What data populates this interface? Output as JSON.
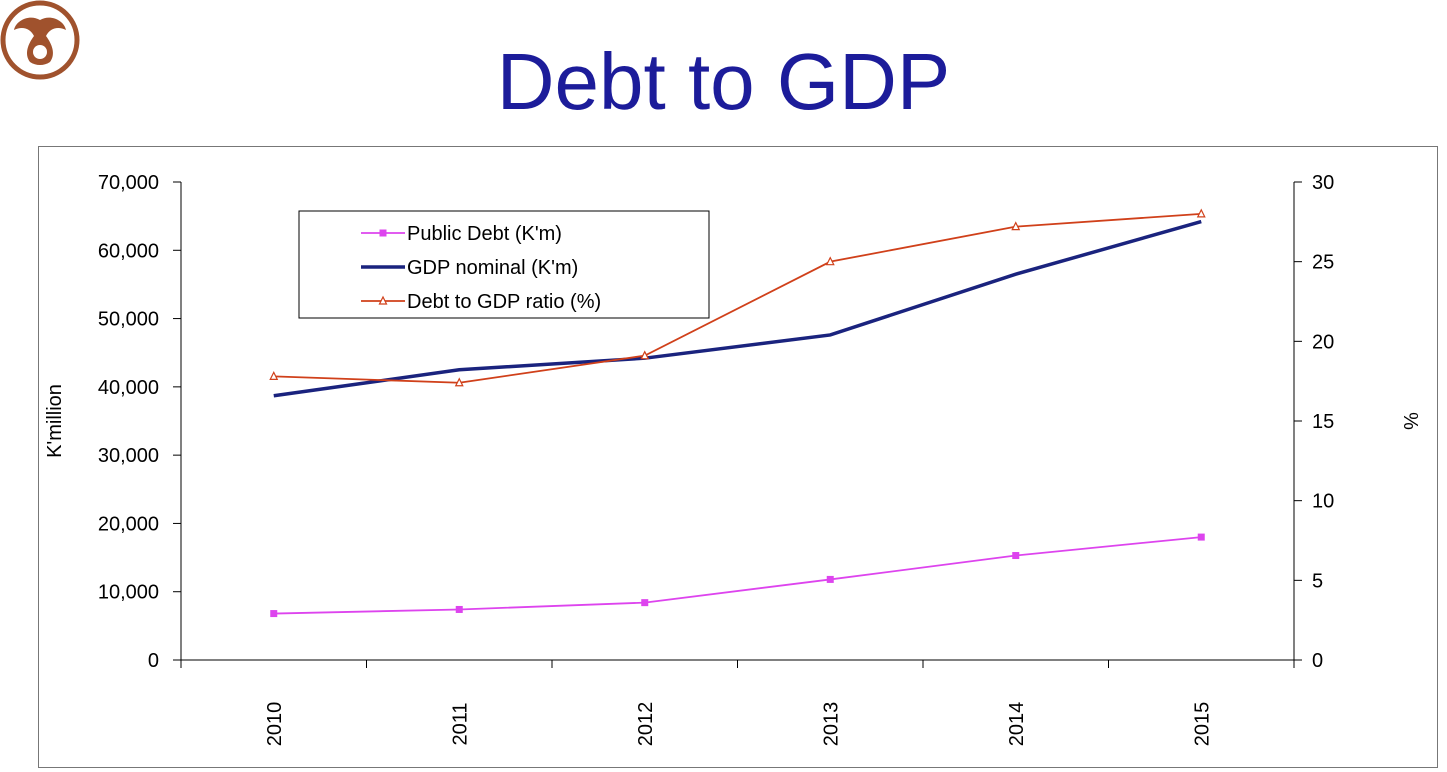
{
  "title": "Debt to GDP",
  "logo": {
    "icon": "phoenix-emblem-icon",
    "color": "#a0522d"
  },
  "chart_data": {
    "type": "line",
    "title": "Debt to GDP",
    "categories": [
      "2010",
      "2011",
      "2012",
      "2013",
      "2014",
      "2015"
    ],
    "y_left": {
      "label": "K'million",
      "range": [
        0,
        70000
      ],
      "ticks": [
        0,
        10000,
        20000,
        30000,
        40000,
        50000,
        60000,
        70000
      ],
      "tick_labels": [
        "0",
        "10,000",
        "20,000",
        "30,000",
        "40,000",
        "50,000",
        "60,000",
        "70,000"
      ]
    },
    "y_right": {
      "label": "%",
      "range": [
        0,
        30
      ],
      "ticks": [
        0,
        5,
        10,
        15,
        20,
        25,
        30
      ],
      "tick_labels": [
        "0",
        "5",
        "10",
        "15",
        "20",
        "25",
        "30"
      ]
    },
    "grid": false,
    "legend_position": "top-left",
    "series": [
      {
        "name": "Public Debt (K'm)",
        "axis": "left",
        "color": "#dd44ee",
        "marker": "square",
        "values": [
          6800,
          7400,
          8400,
          11800,
          15300,
          18000
        ]
      },
      {
        "name": "GDP nominal (K'm)",
        "axis": "left",
        "color": "#1a237e",
        "marker": "none",
        "values": [
          38700,
          42500,
          44200,
          47600,
          56500,
          64200
        ]
      },
      {
        "name": "Debt to GDP ratio (%)",
        "axis": "right",
        "color": "#d0401a",
        "marker": "triangle",
        "values": [
          17.8,
          17.4,
          19.1,
          25.0,
          27.2,
          28.0
        ]
      }
    ]
  }
}
